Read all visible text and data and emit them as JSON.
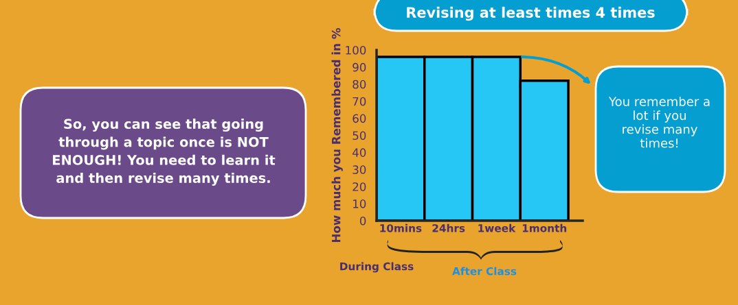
{
  "chart_data": {
    "type": "bar",
    "title": "Revising at least times 4 times",
    "ylabel": "How much you Remembered in %",
    "categories": [
      "10mins",
      "24hrs",
      "1week",
      "1month"
    ],
    "values": [
      96,
      96,
      96,
      82
    ],
    "color": "#26c6f5",
    "ylim": [
      0,
      100
    ],
    "yticks": [
      0,
      10,
      20,
      30,
      40,
      50,
      60,
      70,
      80,
      90,
      100
    ],
    "grid": false,
    "annotations": [
      "So, you can see that going through a topic once is NOT ENOUGH! You need to learn it and then revise many times.",
      "You remember a lot if you revise many times!",
      "During Class",
      "After Class"
    ]
  }
}
